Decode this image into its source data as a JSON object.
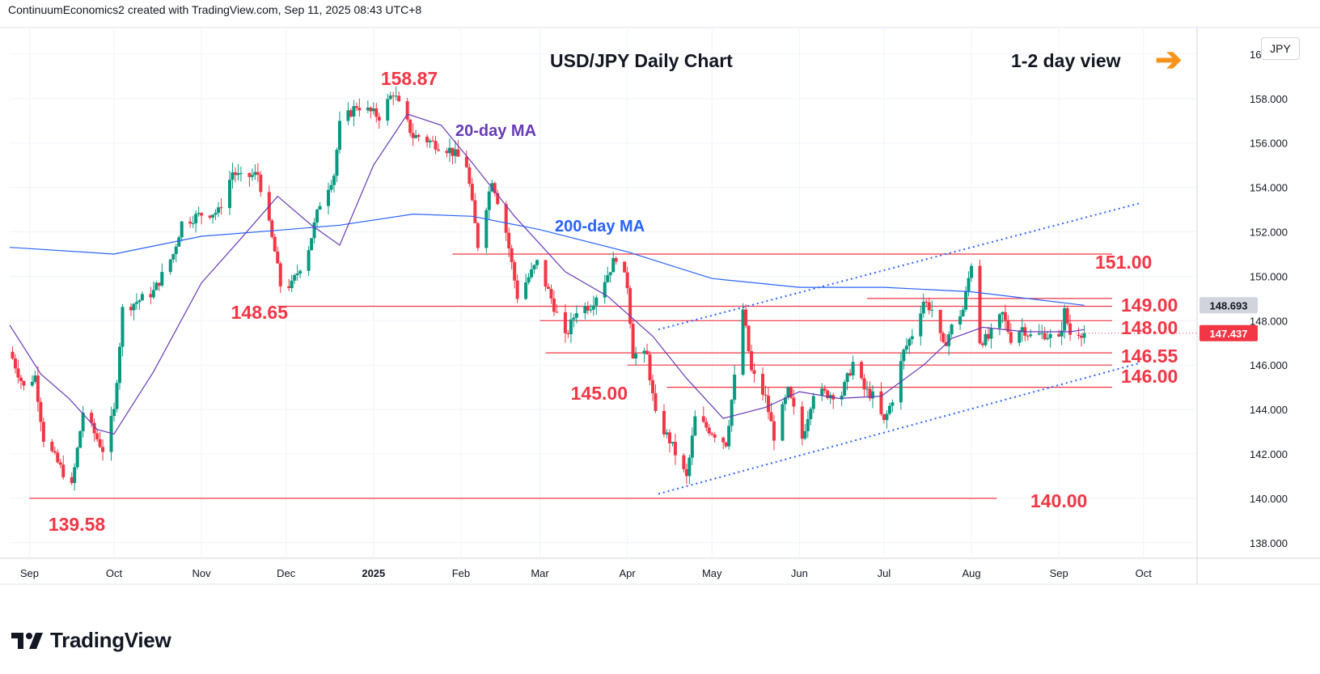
{
  "header": {
    "created_text": "ContinuumEconomics2 created with TradingView.com, Sep 11, 2025 08:43 UTC+8"
  },
  "brand": {
    "name": "TradingView"
  },
  "top_bar": {
    "currency_button": "JPY",
    "view_label": "1-2 day view",
    "view_arrow": "➔"
  },
  "colors": {
    "up": "#089981",
    "down": "#f23645",
    "ma20": "#673ab7",
    "ma200": "#2962ff",
    "level": "#f23645",
    "channel": "#2962ff",
    "arrow": "#f7931a",
    "grid": "#f0f3fa",
    "current_price_bg": "#f23645",
    "ma_price_bg": "#d1d4dc"
  },
  "chart_data": {
    "type": "candlestick",
    "title": "USD/JPY Daily Chart",
    "y_axis": {
      "ticks": [
        "138.000",
        "140.000",
        "142.000",
        "144.000",
        "146.000",
        "148.000",
        "150.000",
        "152.000",
        "154.000",
        "156.000",
        "158.000",
        "160.000"
      ],
      "range": [
        137.3,
        161.2
      ]
    },
    "x_axis": {
      "ticks": [
        "Sep",
        "Oct",
        "Nov",
        "Dec",
        "2025",
        "Feb",
        "Mar",
        "Apr",
        "May",
        "Jun",
        "Jul",
        "Aug",
        "Sep",
        "Oct"
      ],
      "range": [
        "2024-08-25",
        "2025-10-20"
      ]
    },
    "price_labels": {
      "ma_price": "148.693",
      "current_price": "147.437"
    },
    "annotations": {
      "ma20_label": "20-day MA",
      "ma200_label": "200-day MA",
      "levels": [
        {
          "label": "151.00",
          "value": 151.0,
          "from": "2025-01-29",
          "to": "2025-09-30"
        },
        {
          "label": "149.00",
          "value": 149.0,
          "from": "2025-06-25",
          "to": "2025-09-30"
        },
        {
          "label": "148.65",
          "value": 148.65,
          "from": "2024-11-28",
          "to": "2025-09-30"
        },
        {
          "label": "148.00",
          "value": 148.0,
          "from": "2025-03-01",
          "to": "2025-09-30"
        },
        {
          "label": "146.55",
          "value": 146.55,
          "from": "2025-03-03",
          "to": "2025-09-30"
        },
        {
          "label": "146.00",
          "value": 146.0,
          "from": "2025-04-01",
          "to": "2025-09-30"
        },
        {
          "label": "145.00",
          "value": 145.0,
          "from": "2025-04-15",
          "to": "2025-09-30"
        },
        {
          "label": "140.00",
          "value": 140.0,
          "from": "2024-09-01",
          "to": "2025-08-10"
        }
      ],
      "peak_labels": [
        {
          "label": "158.87",
          "date": "2025-01-10",
          "value": 158.87
        },
        {
          "label": "139.58",
          "date": "2024-09-16",
          "value": 139.58
        }
      ],
      "channel_upper": {
        "start": [
          "2025-04-12",
          147.6
        ],
        "end": [
          "2025-09-30",
          153.3
        ]
      },
      "channel_lower": {
        "start": [
          "2025-04-12",
          140.2
        ],
        "end": [
          "2025-09-30",
          146.1
        ]
      }
    },
    "anchors": [
      [
        "2024-08-26",
        146.3
      ],
      [
        "2024-08-30",
        145.0
      ],
      [
        "2024-09-03",
        145.5
      ],
      [
        "2024-09-06",
        142.7
      ],
      [
        "2024-09-11",
        141.6
      ],
      [
        "2024-09-16",
        140.5
      ],
      [
        "2024-09-20",
        143.9
      ],
      [
        "2024-09-27",
        142.2
      ],
      [
        "2024-10-01",
        143.9
      ],
      [
        "2024-10-04",
        148.5
      ],
      [
        "2024-10-11",
        149.0
      ],
      [
        "2024-10-15",
        149.3
      ],
      [
        "2024-10-22",
        151.0
      ],
      [
        "2024-10-25",
        152.4
      ],
      [
        "2024-11-01",
        152.8
      ],
      [
        "2024-11-07",
        152.9
      ],
      [
        "2024-11-12",
        154.7
      ],
      [
        "2024-11-15",
        154.4
      ],
      [
        "2024-11-21",
        154.6
      ],
      [
        "2024-11-27",
        151.1
      ],
      [
        "2024-11-29",
        149.6
      ],
      [
        "2024-12-03",
        149.6
      ],
      [
        "2024-12-09",
        151.3
      ],
      [
        "2024-12-13",
        153.3
      ],
      [
        "2024-12-18",
        154.6
      ],
      [
        "2024-12-20",
        156.8
      ],
      [
        "2024-12-26",
        157.7
      ],
      [
        "2025-01-03",
        157.2
      ],
      [
        "2025-01-08",
        158.3
      ],
      [
        "2025-01-10",
        157.7
      ],
      [
        "2025-01-15",
        156.3
      ],
      [
        "2025-01-17",
        156.3
      ],
      [
        "2025-01-24",
        155.9
      ],
      [
        "2025-01-28",
        155.7
      ],
      [
        "2025-02-03",
        155.0
      ],
      [
        "2025-02-07",
        151.4
      ],
      [
        "2025-02-12",
        154.4
      ],
      [
        "2025-02-17",
        152.0
      ],
      [
        "2025-02-21",
        149.1
      ],
      [
        "2025-02-28",
        150.6
      ],
      [
        "2025-03-05",
        149.0
      ],
      [
        "2025-03-10",
        147.2
      ],
      [
        "2025-03-14",
        148.5
      ],
      [
        "2025-03-19",
        148.7
      ],
      [
        "2025-03-25",
        150.1
      ],
      [
        "2025-03-28",
        150.9
      ],
      [
        "2025-04-01",
        149.6
      ],
      [
        "2025-04-03",
        146.5
      ],
      [
        "2025-04-08",
        146.4
      ],
      [
        "2025-04-11",
        143.7
      ],
      [
        "2025-04-16",
        142.6
      ],
      [
        "2025-04-22",
        140.9
      ],
      [
        "2025-04-25",
        143.6
      ],
      [
        "2025-04-30",
        143.1
      ],
      [
        "2025-05-06",
        142.5
      ],
      [
        "2025-05-09",
        145.4
      ],
      [
        "2025-05-12",
        148.5
      ],
      [
        "2025-05-15",
        145.7
      ],
      [
        "2025-05-20",
        144.5
      ],
      [
        "2025-05-23",
        142.8
      ],
      [
        "2025-05-28",
        144.8
      ],
      [
        "2025-06-02",
        142.7
      ],
      [
        "2025-06-06",
        144.8
      ],
      [
        "2025-06-11",
        144.7
      ],
      [
        "2025-06-16",
        144.7
      ],
      [
        "2025-06-20",
        146.1
      ],
      [
        "2025-06-24",
        144.9
      ],
      [
        "2025-06-27",
        144.6
      ],
      [
        "2025-07-01",
        143.4
      ],
      [
        "2025-07-04",
        144.5
      ],
      [
        "2025-07-08",
        146.6
      ],
      [
        "2025-07-11",
        147.4
      ],
      [
        "2025-07-15",
        148.9
      ],
      [
        "2025-07-18",
        148.5
      ],
      [
        "2025-07-22",
        146.8
      ],
      [
        "2025-07-25",
        147.7
      ],
      [
        "2025-07-29",
        148.5
      ],
      [
        "2025-08-01",
        150.6
      ],
      [
        "2025-08-04",
        147.1
      ],
      [
        "2025-08-07",
        147.2
      ],
      [
        "2025-08-12",
        148.3
      ],
      [
        "2025-08-15",
        147.2
      ],
      [
        "2025-08-19",
        147.7
      ],
      [
        "2025-08-22",
        147.3
      ],
      [
        "2025-08-27",
        147.4
      ],
      [
        "2025-09-01",
        147.1
      ],
      [
        "2025-09-03",
        148.4
      ],
      [
        "2025-09-05",
        147.4
      ],
      [
        "2025-09-08",
        147.5
      ],
      [
        "2025-09-10",
        147.437
      ]
    ],
    "ma20": [
      [
        "2024-08-25",
        147.8
      ],
      [
        "2024-09-05",
        145.6
      ],
      [
        "2024-09-15",
        144.5
      ],
      [
        "2024-09-25",
        143.1
      ],
      [
        "2024-10-01",
        142.9
      ],
      [
        "2024-10-15",
        145.7
      ],
      [
        "2024-11-01",
        149.7
      ],
      [
        "2024-11-15",
        151.7
      ],
      [
        "2024-11-28",
        153.6
      ],
      [
        "2024-12-10",
        152.3
      ],
      [
        "2024-12-20",
        151.4
      ],
      [
        "2025-01-01",
        155.0
      ],
      [
        "2025-01-13",
        157.3
      ],
      [
        "2025-01-25",
        156.8
      ],
      [
        "2025-02-05",
        155.1
      ],
      [
        "2025-02-20",
        152.7
      ],
      [
        "2025-03-10",
        150.2
      ],
      [
        "2025-03-25",
        149.1
      ],
      [
        "2025-04-10",
        147.3
      ],
      [
        "2025-04-22",
        145.4
      ],
      [
        "2025-05-05",
        143.6
      ],
      [
        "2025-05-20",
        144.1
      ],
      [
        "2025-06-01",
        144.8
      ],
      [
        "2025-06-15",
        144.5
      ],
      [
        "2025-06-30",
        144.6
      ],
      [
        "2025-07-15",
        146.0
      ],
      [
        "2025-07-25",
        147.2
      ],
      [
        "2025-08-05",
        147.7
      ],
      [
        "2025-08-20",
        147.5
      ],
      [
        "2025-09-05",
        147.5
      ],
      [
        "2025-09-10",
        147.6
      ]
    ],
    "ma200": [
      [
        "2024-08-25",
        151.3
      ],
      [
        "2024-10-01",
        151.0
      ],
      [
        "2024-11-01",
        151.8
      ],
      [
        "2024-12-01",
        152.1
      ],
      [
        "2024-12-20",
        152.3
      ],
      [
        "2025-01-15",
        152.8
      ],
      [
        "2025-02-05",
        152.7
      ],
      [
        "2025-03-01",
        152.1
      ],
      [
        "2025-04-01",
        151.1
      ],
      [
        "2025-05-01",
        149.9
      ],
      [
        "2025-06-01",
        149.5
      ],
      [
        "2025-07-01",
        149.5
      ],
      [
        "2025-08-01",
        149.3
      ],
      [
        "2025-09-10",
        148.693
      ]
    ]
  }
}
